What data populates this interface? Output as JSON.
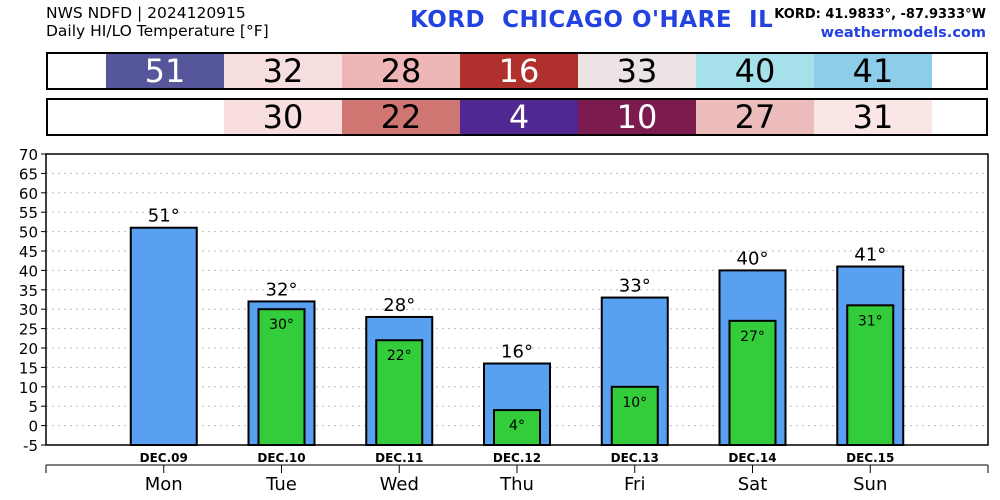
{
  "header": {
    "source": "NWS NDFD | 2024120915",
    "subtitle": "Daily HI/LO Temperature [°F]",
    "station_title": "KORD  CHICAGO O'HARE  IL",
    "coords": "KORD: 41.9833°, -87.9333°W",
    "site": "weathermodels.com"
  },
  "hi_row": [
    {
      "text": "51",
      "bg": "#56569a",
      "fg": "#ffffff"
    },
    {
      "text": "32",
      "bg": "#f7dede",
      "fg": "#000000"
    },
    {
      "text": "28",
      "bg": "#eeb6b6",
      "fg": "#000000"
    },
    {
      "text": "16",
      "bg": "#b0302e",
      "fg": "#ffffff"
    },
    {
      "text": "33",
      "bg": "#ece4e4",
      "fg": "#000000"
    },
    {
      "text": "40",
      "bg": "#a6e0ea",
      "fg": "#000000"
    },
    {
      "text": "41",
      "bg": "#8dcde9",
      "fg": "#000000"
    }
  ],
  "lo_row": [
    {
      "text": "",
      "bg": "#ffffff",
      "fg": "#000000"
    },
    {
      "text": "30",
      "bg": "#f8dede",
      "fg": "#000000"
    },
    {
      "text": "22",
      "bg": "#cf7673",
      "fg": "#000000"
    },
    {
      "text": "4",
      "bg": "#512793",
      "fg": "#ffffff"
    },
    {
      "text": "10",
      "bg": "#7b1b50",
      "fg": "#ffffff"
    },
    {
      "text": "27",
      "bg": "#edbcbc",
      "fg": "#000000"
    },
    {
      "text": "31",
      "bg": "#fbe6e6",
      "fg": "#000000"
    }
  ],
  "chart_data": {
    "type": "bar",
    "categories": [
      "DEC.09",
      "DEC.10",
      "DEC.11",
      "DEC.12",
      "DEC.13",
      "DEC.14",
      "DEC.15"
    ],
    "day_labels": [
      "Mon",
      "Tue",
      "Wed",
      "Thu",
      "Fri",
      "Sat",
      "Sun"
    ],
    "series": [
      {
        "values": [
          51,
          32,
          28,
          16,
          33,
          40,
          41
        ],
        "labels": [
          "51°",
          "32°",
          "28°",
          "16°",
          "33°",
          "40°",
          "41°"
        ],
        "color": "#5aa0f0"
      },
      {
        "values": [
          null,
          30,
          22,
          4,
          10,
          27,
          31
        ],
        "labels": [
          "",
          "30°",
          "22°",
          "4°",
          "10°",
          "27°",
          "31°"
        ],
        "color": "#33cc3b"
      }
    ],
    "ylim": [
      -5,
      70
    ],
    "yticks": [
      "-5",
      "0",
      "5",
      "10",
      "15",
      "20",
      "25",
      "30",
      "35",
      "40",
      "45",
      "50",
      "55",
      "60",
      "65",
      "70"
    ],
    "grid": true
  }
}
